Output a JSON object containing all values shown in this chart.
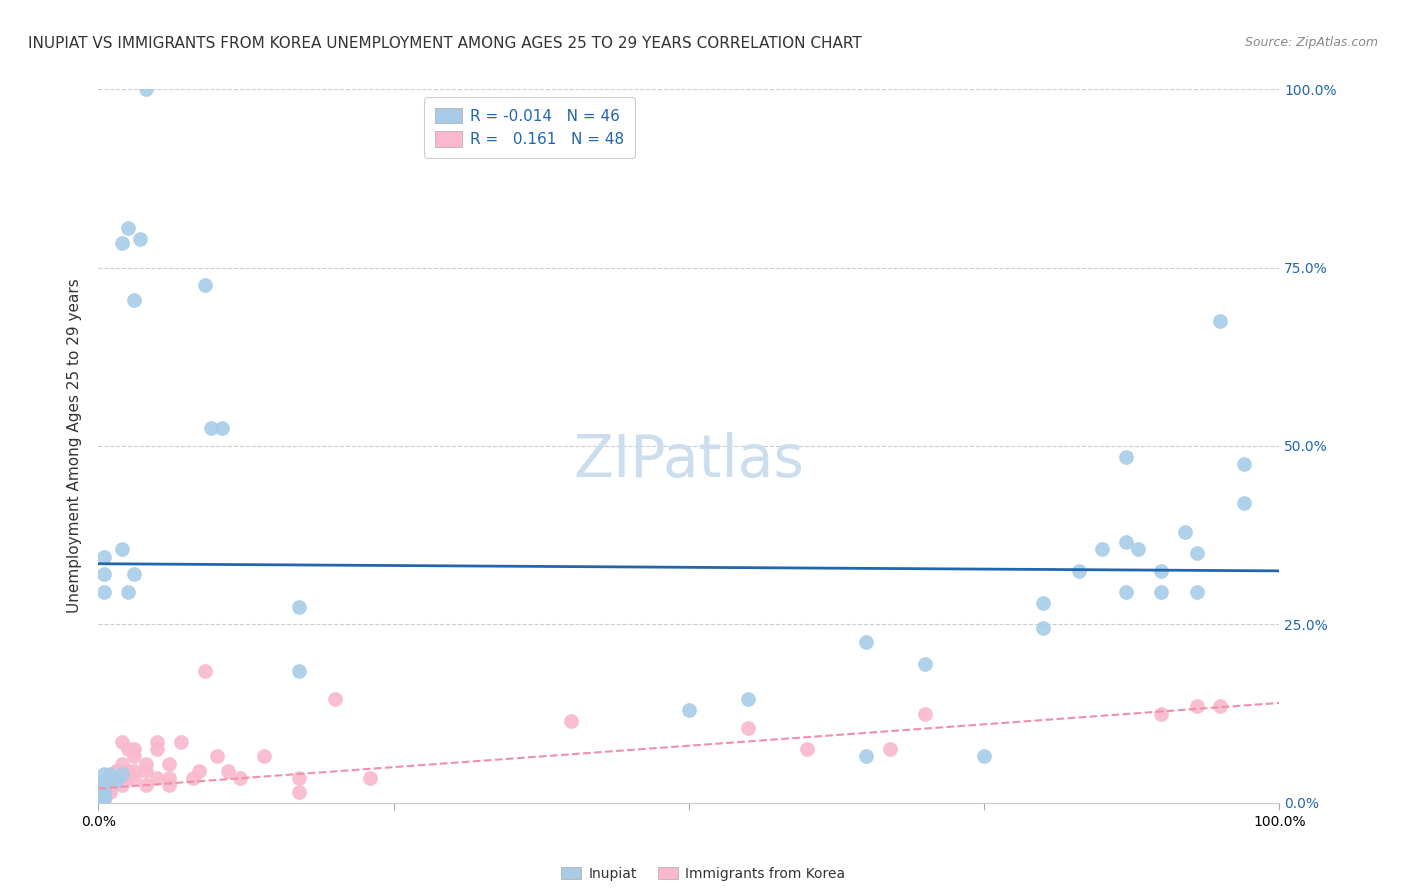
{
  "title": "INUPIAT VS IMMIGRANTS FROM KOREA UNEMPLOYMENT AMONG AGES 25 TO 29 YEARS CORRELATION CHART",
  "source": "Source: ZipAtlas.com",
  "ylabel": "Unemployment Among Ages 25 to 29 years",
  "xlim": [
    0.0,
    1.0
  ],
  "ylim": [
    0.0,
    1.0
  ],
  "xtick_positions": [
    0.0,
    0.25,
    0.5,
    0.75,
    1.0
  ],
  "xtick_labels": [
    "0.0%",
    "",
    "",
    "",
    "100.0%"
  ],
  "ytick_positions": [
    0.0,
    0.25,
    0.5,
    0.75,
    1.0
  ],
  "right_ytick_labels": [
    "0.0%",
    "25.0%",
    "50.0%",
    "75.0%",
    "100.0%"
  ],
  "grid_color": "#cccccc",
  "watermark": "ZIPatlas",
  "inupiat_label": "Inupiat",
  "korea_label": "Immigrants from Korea",
  "inupiat_color": "#a8cce8",
  "korea_color": "#f9b8cc",
  "inupiat_line_color": "#2166ac",
  "korea_line_color": "#f090a8",
  "inupiat_R": -0.014,
  "inupiat_N": 46,
  "korea_R": 0.161,
  "korea_N": 48,
  "inupiat_line_y0": 0.335,
  "inupiat_line_y1": 0.325,
  "korea_line_y0": 0.02,
  "korea_line_y1": 0.14,
  "inupiat_points": [
    [
      0.04,
      1.0
    ],
    [
      0.02,
      0.785
    ],
    [
      0.025,
      0.805
    ],
    [
      0.03,
      0.705
    ],
    [
      0.035,
      0.79
    ],
    [
      0.09,
      0.725
    ],
    [
      0.095,
      0.525
    ],
    [
      0.105,
      0.525
    ],
    [
      0.02,
      0.355
    ],
    [
      0.03,
      0.32
    ],
    [
      0.025,
      0.295
    ],
    [
      0.17,
      0.275
    ],
    [
      0.005,
      0.345
    ],
    [
      0.005,
      0.295
    ],
    [
      0.005,
      0.32
    ],
    [
      0.01,
      0.04
    ],
    [
      0.015,
      0.03
    ],
    [
      0.02,
      0.04
    ],
    [
      0.005,
      0.04
    ],
    [
      0.005,
      0.02
    ],
    [
      0.005,
      0.03
    ],
    [
      0.005,
      0.01
    ],
    [
      0.005,
      0.005
    ],
    [
      0.17,
      0.185
    ],
    [
      0.5,
      0.13
    ],
    [
      0.55,
      0.145
    ],
    [
      0.65,
      0.065
    ],
    [
      0.65,
      0.225
    ],
    [
      0.7,
      0.195
    ],
    [
      0.75,
      0.065
    ],
    [
      0.8,
      0.245
    ],
    [
      0.8,
      0.28
    ],
    [
      0.83,
      0.325
    ],
    [
      0.85,
      0.355
    ],
    [
      0.87,
      0.295
    ],
    [
      0.87,
      0.485
    ],
    [
      0.87,
      0.365
    ],
    [
      0.88,
      0.355
    ],
    [
      0.9,
      0.295
    ],
    [
      0.9,
      0.325
    ],
    [
      0.92,
      0.38
    ],
    [
      0.93,
      0.35
    ],
    [
      0.93,
      0.295
    ],
    [
      0.95,
      0.675
    ],
    [
      0.97,
      0.475
    ],
    [
      0.97,
      0.42
    ]
  ],
  "korea_points": [
    [
      0.005,
      0.015
    ],
    [
      0.005,
      0.025
    ],
    [
      0.005,
      0.005
    ],
    [
      0.005,
      0.005
    ],
    [
      0.005,
      0.01
    ],
    [
      0.01,
      0.02
    ],
    [
      0.01,
      0.015
    ],
    [
      0.015,
      0.035
    ],
    [
      0.015,
      0.045
    ],
    [
      0.02,
      0.025
    ],
    [
      0.02,
      0.055
    ],
    [
      0.02,
      0.085
    ],
    [
      0.025,
      0.075
    ],
    [
      0.025,
      0.045
    ],
    [
      0.025,
      0.035
    ],
    [
      0.03,
      0.065
    ],
    [
      0.03,
      0.035
    ],
    [
      0.03,
      0.075
    ],
    [
      0.03,
      0.045
    ],
    [
      0.04,
      0.045
    ],
    [
      0.04,
      0.055
    ],
    [
      0.04,
      0.025
    ],
    [
      0.05,
      0.075
    ],
    [
      0.05,
      0.085
    ],
    [
      0.05,
      0.035
    ],
    [
      0.06,
      0.035
    ],
    [
      0.06,
      0.055
    ],
    [
      0.06,
      0.025
    ],
    [
      0.07,
      0.085
    ],
    [
      0.08,
      0.035
    ],
    [
      0.085,
      0.045
    ],
    [
      0.09,
      0.185
    ],
    [
      0.1,
      0.065
    ],
    [
      0.11,
      0.045
    ],
    [
      0.12,
      0.035
    ],
    [
      0.14,
      0.065
    ],
    [
      0.17,
      0.015
    ],
    [
      0.17,
      0.035
    ],
    [
      0.2,
      0.145
    ],
    [
      0.23,
      0.035
    ],
    [
      0.4,
      0.115
    ],
    [
      0.55,
      0.105
    ],
    [
      0.6,
      0.075
    ],
    [
      0.67,
      0.075
    ],
    [
      0.7,
      0.125
    ],
    [
      0.9,
      0.125
    ],
    [
      0.93,
      0.135
    ],
    [
      0.95,
      0.135
    ]
  ],
  "title_fontsize": 11,
  "axis_label_fontsize": 11,
  "tick_fontsize": 10,
  "legend_fontsize": 11,
  "watermark_fontsize": 42,
  "watermark_color": "#ccdded",
  "background_color": "#ffffff"
}
